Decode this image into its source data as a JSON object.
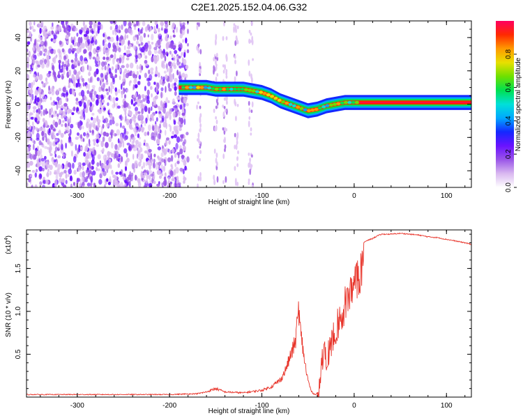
{
  "figure_title": "C2E1.2025.152.04.06.G32",
  "colors": {
    "snr_line": "#e8342a",
    "cbar_stops": [
      "#ffffff",
      "#d9b8f0",
      "#9a55e8",
      "#6a12ff",
      "#1428ff",
      "#00a8ff",
      "#00e0d8",
      "#00e050",
      "#6ee000",
      "#e8e000",
      "#ff9a00",
      "#ff2a00",
      "#ff0060"
    ]
  },
  "chart_data": [
    {
      "type": "heatmap",
      "xlabel": "Height of straight line (km)",
      "ylabel": "Frequency (Hz)",
      "xlim": [
        -355,
        127
      ],
      "ylim": [
        -50,
        50
      ],
      "xticks": [
        -300,
        -200,
        -100,
        0,
        100
      ],
      "xtick_labels": [
        "-300",
        "-200",
        "-100",
        "0",
        "100"
      ],
      "yticks": [
        -40,
        -20,
        0,
        20,
        40
      ],
      "ytick_labels": [
        "-40",
        "-20",
        "0",
        "20",
        "40"
      ],
      "colorbar": {
        "label": "Normalized spectral amplitude",
        "range": [
          0,
          1
        ],
        "ticks": [
          0.0,
          0.2,
          0.4,
          0.6,
          0.8
        ],
        "tick_labels": [
          "0.0",
          "0.2",
          "0.4",
          "0.6",
          "0.8"
        ]
      },
      "ridge": {
        "x": [
          -190,
          -180,
          -170,
          -160,
          -150,
          -140,
          -130,
          -120,
          -110,
          -100,
          -90,
          -80,
          -70,
          -60,
          -50,
          -40,
          -30,
          -20,
          -10,
          0,
          10,
          127
        ],
        "y": [
          10,
          10,
          10,
          10,
          9,
          9,
          9,
          9,
          8,
          7,
          5,
          2,
          0,
          -2,
          -4,
          -3,
          -1,
          0,
          1,
          1,
          1,
          1
        ]
      }
    },
    {
      "type": "line",
      "xlabel": "Height of straight line (km)",
      "ylabel": "SNR (10 * v/v)",
      "y_multiplier": "(x10^4)",
      "y_multiplier_base": "(x10",
      "y_multiplier_exp": "4",
      "y_multiplier_tail": ")",
      "xlim": [
        -355,
        127
      ],
      "ylim": [
        0,
        1.95
      ],
      "xticks": [
        -300,
        -200,
        -100,
        0,
        100
      ],
      "xtick_labels": [
        "-300",
        "-200",
        "-100",
        "0",
        "100"
      ],
      "yticks": [
        0.5,
        1.0,
        1.5
      ],
      "ytick_labels": [
        "0.5",
        "1.0",
        "1.5"
      ],
      "series": [
        {
          "values_x": [
            -355,
            -300,
            -250,
            -200,
            -170,
            -160,
            -150,
            -140,
            -120,
            -100,
            -90,
            -80,
            -75,
            -70,
            -65,
            -63,
            -61,
            -60,
            -59,
            -58,
            -56,
            -54,
            -52,
            -50,
            -48,
            -46,
            -44,
            -42,
            -40,
            -38,
            -35,
            -32,
            -30,
            -25,
            -20,
            -15,
            -10,
            -5,
            0,
            5,
            10,
            15,
            20,
            25,
            30,
            40,
            50,
            60,
            70,
            80,
            90,
            100,
            110,
            120,
            127
          ],
          "values_y": [
            0.03,
            0.03,
            0.03,
            0.03,
            0.04,
            0.06,
            0.1,
            0.06,
            0.05,
            0.08,
            0.12,
            0.2,
            0.3,
            0.45,
            0.6,
            0.7,
            0.95,
            1.05,
            0.85,
            0.75,
            0.6,
            0.45,
            0.3,
            0.2,
            0.12,
            0.06,
            0.04,
            0.03,
            0.05,
            0.25,
            0.55,
            0.65,
            0.6,
            0.8,
            1.0,
            1.1,
            1.3,
            1.45,
            1.5,
            1.65,
            1.8,
            1.83,
            1.85,
            1.88,
            1.9,
            1.9,
            1.91,
            1.9,
            1.89,
            1.87,
            1.86,
            1.84,
            1.82,
            1.8,
            1.78
          ]
        }
      ]
    }
  ]
}
